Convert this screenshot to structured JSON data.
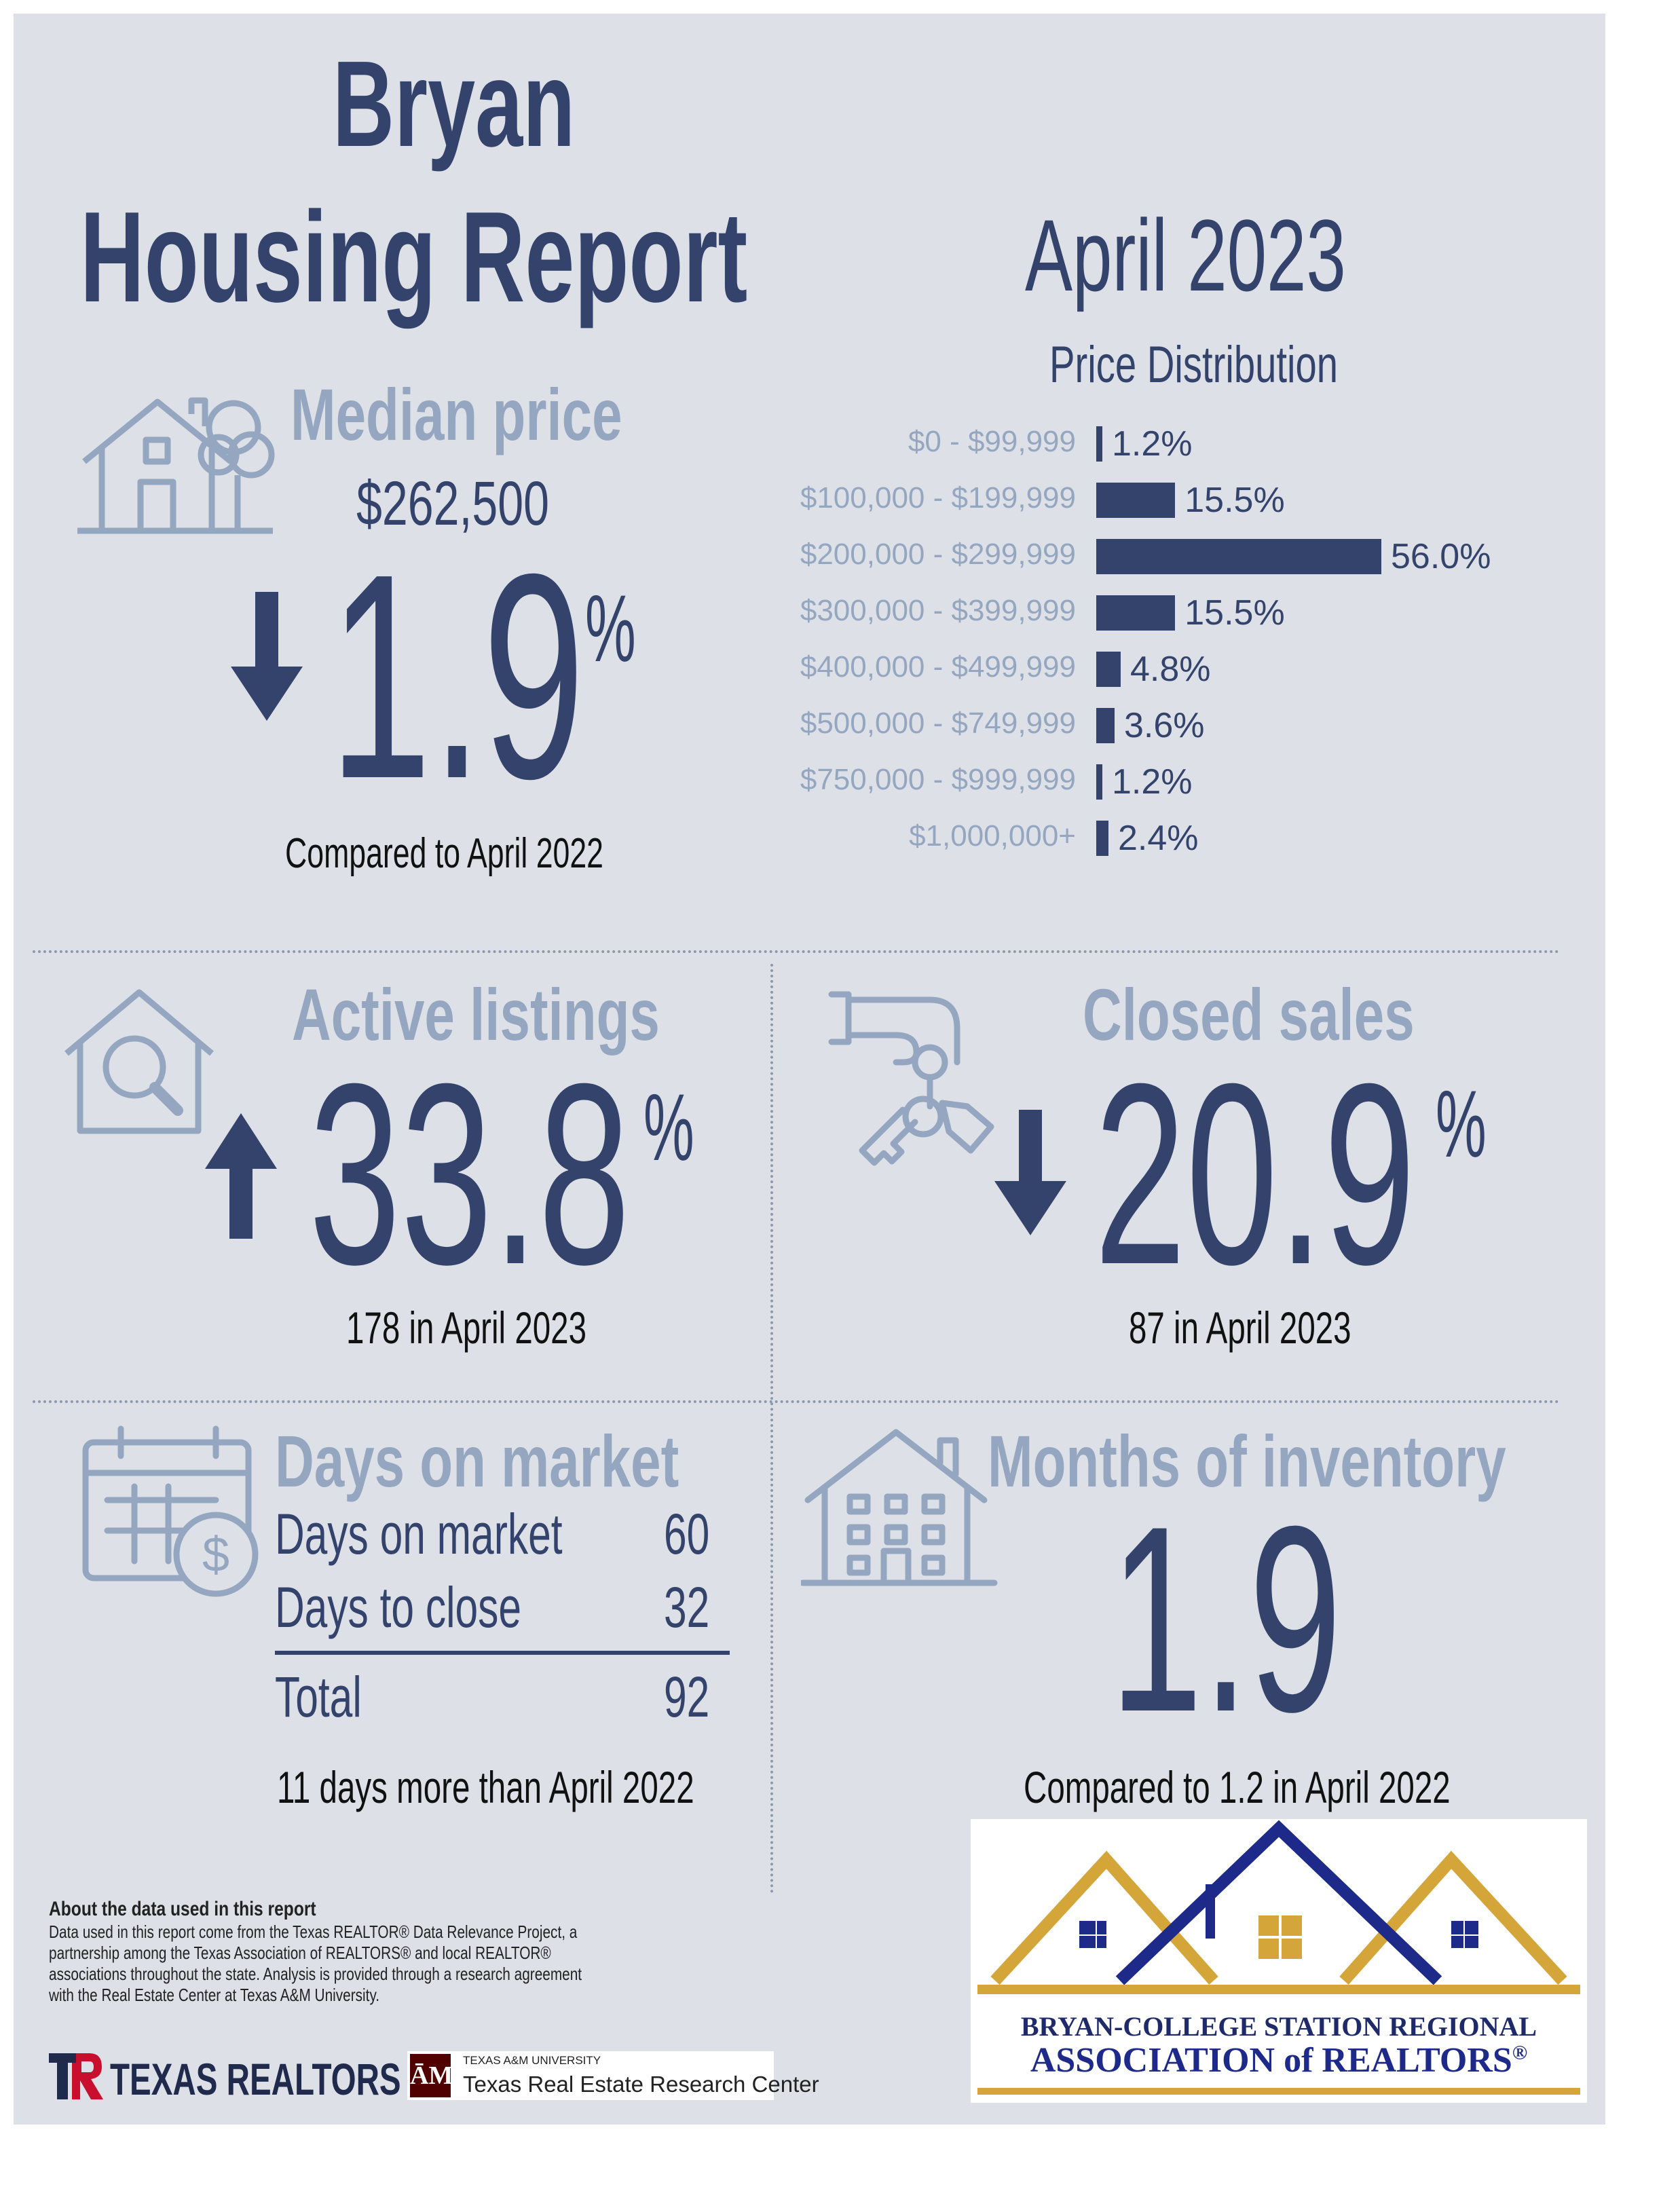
{
  "header": {
    "city": "Bryan",
    "report_title": "Housing Report",
    "period": "April 2023"
  },
  "median_price": {
    "heading": "Median price",
    "value": "$262,500",
    "change": "1.9",
    "direction": "down",
    "unit": "%",
    "comparison": "Compared to April 2022"
  },
  "price_distribution": {
    "heading": "Price Distribution",
    "chart_data": {
      "type": "bar",
      "orientation": "horizontal",
      "categories": [
        "$0 - $99,999",
        "$100,000 - $199,999",
        "$200,000 - $299,999",
        "$300,000 - $399,999",
        "$400,000 - $499,999",
        "$500,000 - $749,999",
        "$750,000 - $999,999",
        "$1,000,000+"
      ],
      "values": [
        1.2,
        15.5,
        56.0,
        15.5,
        4.8,
        3.6,
        1.2,
        2.4
      ],
      "value_labels": [
        "1.2%",
        "15.5%",
        "56.0%",
        "15.5%",
        "4.8%",
        "3.6%",
        "1.2%",
        "2.4%"
      ],
      "color": "#34436b"
    }
  },
  "active_listings": {
    "heading": "Active listings",
    "change": "33.8",
    "direction": "up",
    "unit": "%",
    "detail": "178 in April 2023"
  },
  "closed_sales": {
    "heading": "Closed sales",
    "change": "20.9",
    "direction": "down",
    "unit": "%",
    "detail": "87 in April 2023"
  },
  "days_on_market": {
    "heading": "Days on market",
    "rows": [
      {
        "label": "Days on market",
        "value": "60"
      },
      {
        "label": "Days to close",
        "value": "32"
      }
    ],
    "total_label": "Total",
    "total_value": "92",
    "comparison": "11 days more than April 2022"
  },
  "months_inventory": {
    "heading": "Months of inventory",
    "value": "1.9",
    "comparison": "Compared to 1.2 in April 2022"
  },
  "footer": {
    "about_title": "About the data used in this report",
    "about_lines": [
      "Data used in this report come from the Texas REALTOR® Data Relevance Project, a",
      "partnership among the Texas Association of REALTORS® and local REALTOR®",
      "associations throughout the state. Analysis is provided through a research agreement",
      "with the Real Estate Center at Texas A&M University."
    ],
    "texas_realtors": "TEXAS REALTORS",
    "tamu_small": "TEXAS A&M UNIVERSITY",
    "tamu_center": "Texas Real Estate Research Center",
    "assoc_line1": "BRYAN-COLLEGE STATION REGIONAL",
    "assoc_line2": "ASSOCIATION of REALTORS",
    "assoc_reg": "®"
  },
  "colors": {
    "navy": "#34436b",
    "pale_blue": "#95a7c0",
    "background": "#dde1e7",
    "gold": "#d4a63a",
    "maroon": "#500000",
    "red": "#c8102e"
  }
}
